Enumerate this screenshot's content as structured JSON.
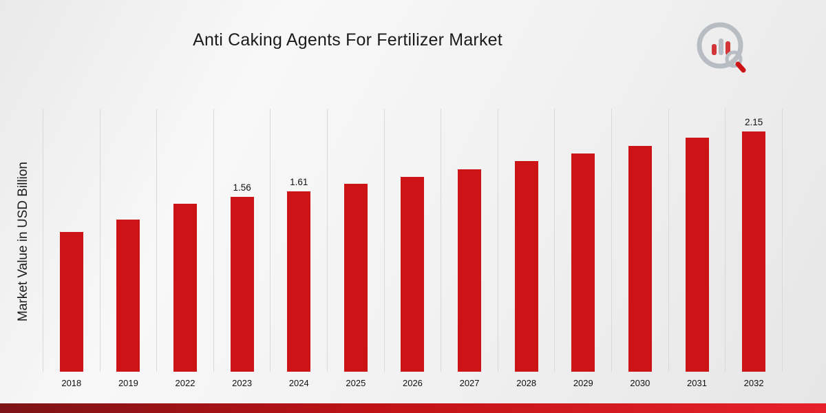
{
  "page": {
    "title": "Anti Caking Agents For Fertilizer Market"
  },
  "chart_data": {
    "type": "bar",
    "title": "Anti Caking Agents For Fertilizer Market",
    "xlabel": "",
    "ylabel": "Market Value in USD Billion",
    "categories": [
      "2018",
      "2019",
      "2022",
      "2023",
      "2024",
      "2025",
      "2026",
      "2027",
      "2028",
      "2029",
      "2030",
      "2031",
      "2032"
    ],
    "values": [
      1.25,
      1.36,
      1.5,
      1.56,
      1.61,
      1.68,
      1.74,
      1.81,
      1.88,
      1.95,
      2.02,
      2.09,
      2.15
    ],
    "data_labels": {
      "2023": "1.56",
      "2024": "1.61",
      "2032": "2.15"
    },
    "ylim": [
      0,
      2.35
    ],
    "grid": "vertical",
    "legend": "none",
    "bar_color": "#cc1316"
  },
  "branding": {
    "logo_icon": "bar-chart-magnifier-logo",
    "ring_color": "#b8bcc3",
    "accent_color": "#cc1316",
    "ribbon_gradient_start": "#7c1315",
    "ribbon_gradient_mid": "#bf1217",
    "ribbon_gradient_end": "#e7212a"
  }
}
